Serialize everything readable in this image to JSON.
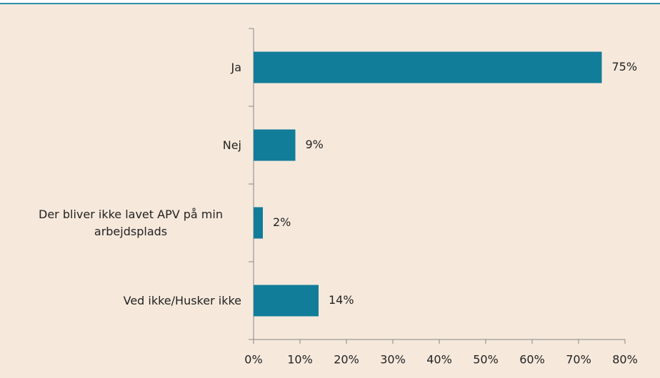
{
  "chart_data": {
    "type": "bar",
    "orientation": "horizontal",
    "categories": [
      "Ja",
      "Nej",
      "Der bliver ikke lavet APV på min arbejdsplads",
      "Ved ikke/Husker ikke"
    ],
    "values": [
      75,
      9,
      2,
      14
    ],
    "value_labels": [
      "75%",
      "9%",
      "2%",
      "14%"
    ],
    "color": "#117d99",
    "xlim": [
      0,
      80
    ],
    "xticks": [
      {
        "value": 0,
        "label": "0%"
      },
      {
        "value": 10,
        "label": "10%"
      },
      {
        "value": 20,
        "label": "20%"
      },
      {
        "value": 30,
        "label": "30%"
      },
      {
        "value": 40,
        "label": "40%"
      },
      {
        "value": 50,
        "label": "50%"
      },
      {
        "value": 60,
        "label": "60%"
      },
      {
        "value": 70,
        "label": "70%"
      },
      {
        "value": 80,
        "label": "80%"
      }
    ],
    "grid": false
  }
}
